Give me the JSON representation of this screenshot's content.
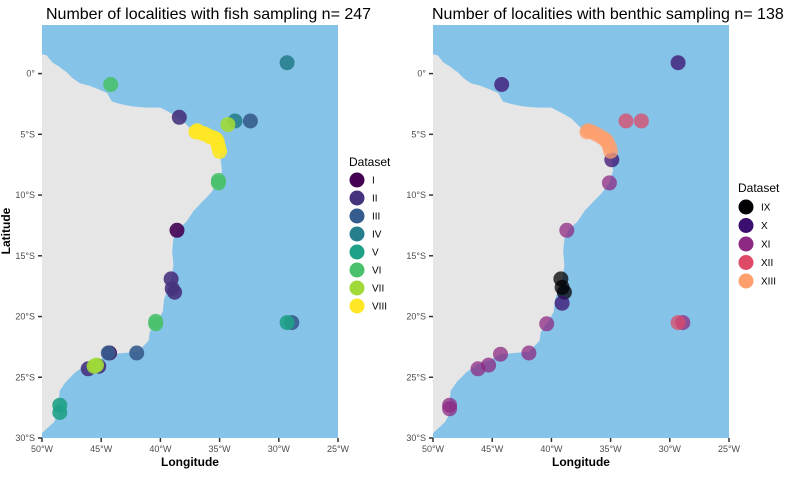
{
  "figure": {
    "background": "#ffffff",
    "ocean_color": "#85c3e8",
    "land_color": "#e6e6e6"
  },
  "chart_data": [
    {
      "type": "scatter",
      "map": true,
      "title": "Number of localities with fish sampling n= 247",
      "xlabel": "Longitude",
      "ylabel": "Latitude",
      "xlim": [
        -50,
        -25
      ],
      "ylim": [
        -30,
        4
      ],
      "x_ticks": [
        -50,
        -45,
        -40,
        -35,
        -30,
        -25
      ],
      "x_tick_labels": [
        "50°W",
        "45°W",
        "40°W",
        "35°W",
        "30°W",
        "25°W"
      ],
      "y_ticks": [
        0,
        -5,
        -10,
        -15,
        -20,
        -25,
        -30
      ],
      "y_tick_labels": [
        "0°",
        "5°S",
        "10°S",
        "15°S",
        "20°S",
        "25°S",
        "30°S"
      ],
      "legend_title": "Dataset",
      "legend_position": "right",
      "series": [
        {
          "name": "I",
          "color": "#440154",
          "points": [
            [
              -38.6,
              -12.9
            ],
            [
              -44.3,
              -23.0
            ]
          ]
        },
        {
          "name": "II",
          "color": "#46337e",
          "points": [
            [
              -38.4,
              -3.6
            ],
            [
              -39.1,
              -16.9
            ],
            [
              -39.0,
              -17.7
            ],
            [
              -38.8,
              -18.0
            ],
            [
              -46.1,
              -24.3
            ],
            [
              -45.2,
              -24.1
            ]
          ]
        },
        {
          "name": "III",
          "color": "#365c8d",
          "points": [
            [
              -44.4,
              -23.0
            ],
            [
              -42.0,
              -23.0
            ],
            [
              -32.4,
              -3.9
            ],
            [
              -28.9,
              -20.5
            ]
          ]
        },
        {
          "name": "IV",
          "color": "#277f8e",
          "points": [
            [
              -29.3,
              0.9
            ],
            [
              -33.7,
              -3.9
            ]
          ]
        },
        {
          "name": "V",
          "color": "#1fa187",
          "points": [
            [
              -48.5,
              -27.3
            ],
            [
              -48.5,
              -27.9
            ],
            [
              -29.3,
              -20.5
            ]
          ]
        },
        {
          "name": "VI",
          "color": "#4ac16d",
          "points": [
            [
              -44.2,
              -0.9
            ],
            [
              -35.1,
              -8.8
            ],
            [
              -35.1,
              -9.0
            ],
            [
              -40.4,
              -20.6
            ],
            [
              -40.4,
              -20.4
            ]
          ]
        },
        {
          "name": "VII",
          "color": "#a0da39",
          "points": [
            [
              -34.3,
              -4.2
            ],
            [
              -45.4,
              -24.0
            ],
            [
              -45.6,
              -24.1
            ]
          ]
        },
        {
          "name": "VIII",
          "color": "#fde725",
          "points": [
            [
              -37.0,
              -4.8
            ],
            [
              -36.5,
              -4.9
            ],
            [
              -36.2,
              -5.0
            ],
            [
              -35.8,
              -5.2
            ],
            [
              -35.5,
              -5.3
            ],
            [
              -35.2,
              -5.6
            ],
            [
              -35.1,
              -6.0
            ],
            [
              -35.0,
              -6.4
            ],
            [
              -36.9,
              -4.7
            ],
            [
              -35.3,
              -5.4
            ]
          ]
        }
      ]
    },
    {
      "type": "scatter",
      "map": true,
      "title": "Number of localities with benthic sampling n= 138",
      "xlabel": "Longitude",
      "ylabel": "",
      "xlim": [
        -50,
        -25
      ],
      "ylim": [
        -30,
        4
      ],
      "x_ticks": [
        -50,
        -45,
        -40,
        -35,
        -30,
        -25
      ],
      "x_tick_labels": [
        "50°W",
        "45°W",
        "40°W",
        "35°W",
        "30°W",
        "25°W"
      ],
      "y_ticks": [
        0,
        -5,
        -10,
        -15,
        -20,
        -25,
        -30
      ],
      "y_tick_labels": [
        "0°",
        "5°S",
        "10°S",
        "15°S",
        "20°S",
        "25°S",
        "30°S"
      ],
      "legend_title": "Dataset",
      "legend_position": "right",
      "series": [
        {
          "name": "IX",
          "color": "#000004",
          "points": [
            [
              -39.2,
              -16.9
            ],
            [
              -39.1,
              -17.6
            ],
            [
              -38.9,
              -18.0
            ]
          ]
        },
        {
          "name": "X",
          "color": "#3b0f70",
          "points": [
            [
              -34.9,
              -7.1
            ],
            [
              -39.1,
              -18.9
            ],
            [
              -29.3,
              0.9
            ],
            [
              -44.2,
              -0.9
            ]
          ]
        },
        {
          "name": "XI",
          "color": "#8c2981",
          "points": [
            [
              -35.1,
              -9.0
            ],
            [
              -38.7,
              -12.9
            ],
            [
              -40.4,
              -20.6
            ],
            [
              -41.9,
              -23.0
            ],
            [
              -44.3,
              -23.1
            ],
            [
              -45.3,
              -24.0
            ],
            [
              -46.2,
              -24.3
            ],
            [
              -48.6,
              -27.3
            ],
            [
              -48.6,
              -27.6
            ],
            [
              -28.9,
              -20.5
            ]
          ]
        },
        {
          "name": "XII",
          "color": "#de4968",
          "points": [
            [
              -33.7,
              -3.9
            ],
            [
              -32.4,
              -3.9
            ],
            [
              -29.3,
              -20.5
            ]
          ]
        },
        {
          "name": "XIII",
          "color": "#fe9f6d",
          "points": [
            [
              -37.0,
              -4.8
            ],
            [
              -36.6,
              -4.8
            ],
            [
              -36.2,
              -5.0
            ],
            [
              -35.8,
              -5.2
            ],
            [
              -35.5,
              -5.4
            ],
            [
              -35.3,
              -5.6
            ],
            [
              -35.1,
              -6.0
            ],
            [
              -35.0,
              -6.4
            ],
            [
              -36.9,
              -4.7
            ]
          ]
        }
      ]
    }
  ]
}
